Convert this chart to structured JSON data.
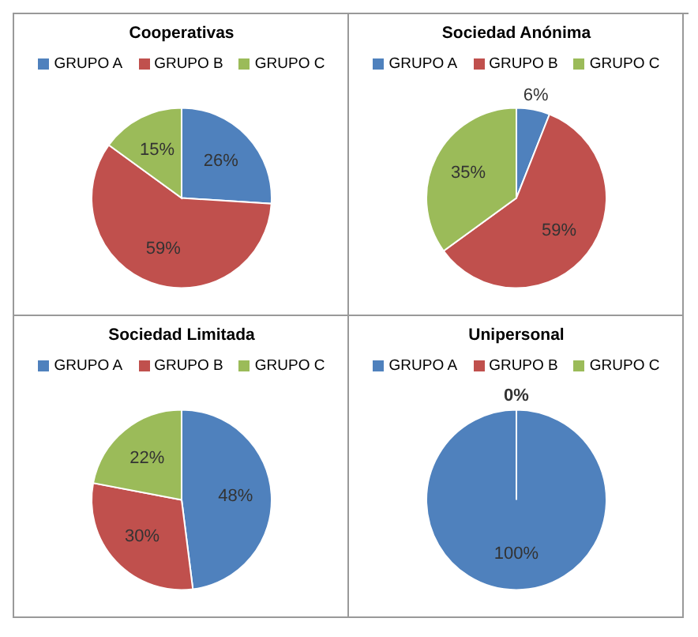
{
  "chart_data": [
    {
      "type": "pie",
      "title": "Cooperativas",
      "categories": [
        "GRUPO A",
        "GRUPO B",
        "GRUPO C"
      ],
      "values": [
        26,
        59,
        15
      ],
      "colors": [
        "#4f81bd",
        "#c0504d",
        "#9bbb59"
      ],
      "value_labels": [
        "26%",
        "59%",
        "15%"
      ],
      "legend": "top"
    },
    {
      "type": "pie",
      "title": "Sociedad Anónima",
      "categories": [
        "GRUPO A",
        "GRUPO B",
        "GRUPO C"
      ],
      "values": [
        6,
        59,
        35
      ],
      "colors": [
        "#4f81bd",
        "#c0504d",
        "#9bbb59"
      ],
      "value_labels": [
        "6%",
        "59%",
        "35%"
      ],
      "legend": "top"
    },
    {
      "type": "pie",
      "title": "Sociedad Limitada",
      "categories": [
        "GRUPO A",
        "GRUPO B",
        "GRUPO C"
      ],
      "values": [
        48,
        30,
        22
      ],
      "colors": [
        "#4f81bd",
        "#c0504d",
        "#9bbb59"
      ],
      "value_labels": [
        "48%",
        "30%",
        "22%"
      ],
      "legend": "top"
    },
    {
      "type": "pie",
      "title": "Unipersonal",
      "categories": [
        "GRUPO A",
        "GRUPO B",
        "GRUPO C"
      ],
      "values": [
        100,
        0,
        0
      ],
      "colors": [
        "#4f81bd",
        "#c0504d",
        "#9bbb59"
      ],
      "value_labels": [
        "100%",
        "0%",
        null
      ],
      "legend": "top"
    }
  ]
}
